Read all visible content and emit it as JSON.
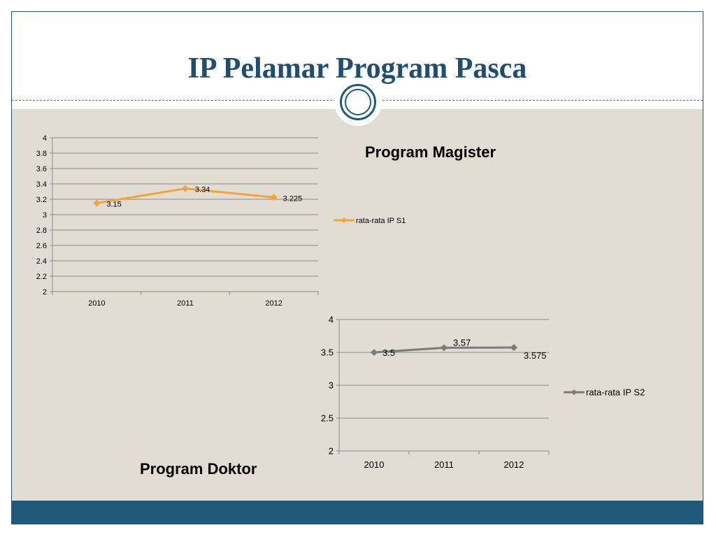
{
  "slide": {
    "title": "IP Pelamar Program Pasca",
    "label_magister": "Program Magister",
    "label_doktor": "Program Doktor"
  },
  "colors": {
    "title": "#1f4e74",
    "accent": "#1f5a7a",
    "background": "#e2ddd2",
    "series_s1": "#f6a23a",
    "series_s2": "#7b7b7b"
  },
  "chart_data": [
    {
      "type": "line",
      "categories": [
        "2010",
        "2011",
        "2012"
      ],
      "series": [
        {
          "name": "rata-rata IP S1",
          "values": [
            3.15,
            3.34,
            3.225
          ],
          "labels": [
            "3.15",
            "3.34",
            "3.225"
          ]
        }
      ],
      "yticks": [
        "2",
        "2.2",
        "2.4",
        "2.6",
        "2.8",
        "3",
        "3.2",
        "3.4",
        "3.6",
        "3.8",
        "4"
      ],
      "ylim": [
        2,
        4
      ],
      "grid": true,
      "legend": "right"
    },
    {
      "type": "line",
      "categories": [
        "2010",
        "2011",
        "2012"
      ],
      "series": [
        {
          "name": "rata-rata IP S2",
          "values": [
            3.5,
            3.57,
            3.575
          ],
          "labels": [
            "3.5",
            "3.57",
            "3.575"
          ]
        }
      ],
      "yticks": [
        "2",
        "2.5",
        "3",
        "3.5",
        "4"
      ],
      "ylim": [
        2,
        4
      ],
      "grid": true,
      "legend": "right"
    }
  ]
}
